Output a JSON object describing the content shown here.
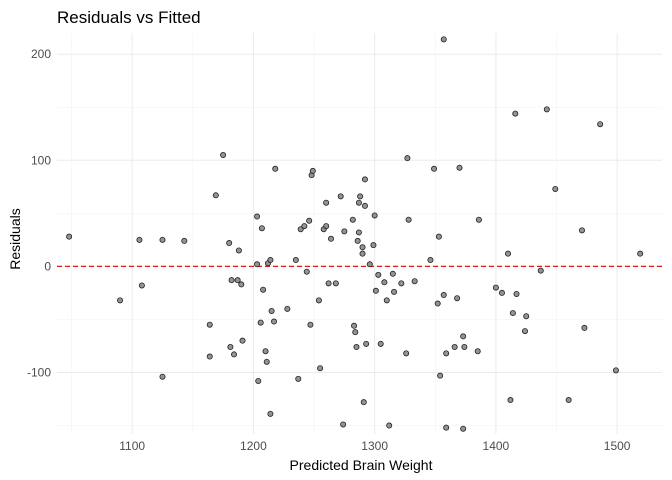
{
  "chart_data": {
    "type": "scatter",
    "title": "Residuals vs Fitted",
    "xlabel": "Predicted Brain Weight",
    "ylabel": "Residuals",
    "xlim": [
      1038,
      1537
    ],
    "ylim": [
      -158,
      220
    ],
    "x_ticks": [
      1100,
      1200,
      1300,
      1400,
      1500
    ],
    "y_ticks": [
      -100,
      0,
      100,
      200
    ],
    "grid": true,
    "reference_line": {
      "y": 0,
      "color": "#e41a1c",
      "style": "dashed"
    },
    "point_color": "#808080",
    "points": [
      [
        1048,
        28
      ],
      [
        1090,
        -32
      ],
      [
        1106,
        25
      ],
      [
        1108,
        -18
      ],
      [
        1125,
        25
      ],
      [
        1125,
        -104
      ],
      [
        1143,
        24
      ],
      [
        1164,
        -55
      ],
      [
        1164,
        -85
      ],
      [
        1169,
        67
      ],
      [
        1175,
        105
      ],
      [
        1180,
        22
      ],
      [
        1181,
        -76
      ],
      [
        1182,
        -13
      ],
      [
        1184,
        -83
      ],
      [
        1187,
        -13
      ],
      [
        1188,
        15
      ],
      [
        1190,
        -17
      ],
      [
        1191,
        -70
      ],
      [
        1203,
        2
      ],
      [
        1203,
        47
      ],
      [
        1204,
        -108
      ],
      [
        1206,
        -53
      ],
      [
        1207,
        36
      ],
      [
        1208,
        -22
      ],
      [
        1210,
        -80
      ],
      [
        1211,
        -90
      ],
      [
        1212,
        3
      ],
      [
        1214,
        6
      ],
      [
        1214,
        -139
      ],
      [
        1215,
        -42
      ],
      [
        1217,
        -52
      ],
      [
        1218,
        92
      ],
      [
        1228,
        -40
      ],
      [
        1235,
        6
      ],
      [
        1237,
        -106
      ],
      [
        1239,
        35
      ],
      [
        1242,
        38
      ],
      [
        1244,
        -5
      ],
      [
        1246,
        43
      ],
      [
        1247,
        -55
      ],
      [
        1248,
        86
      ],
      [
        1249,
        90
      ],
      [
        1254,
        -32
      ],
      [
        1255,
        -96
      ],
      [
        1258,
        35
      ],
      [
        1260,
        38
      ],
      [
        1260,
        60
      ],
      [
        1262,
        -16
      ],
      [
        1264,
        26
      ],
      [
        1268,
        -16
      ],
      [
        1272,
        66
      ],
      [
        1275,
        33
      ],
      [
        1274,
        -149
      ],
      [
        1282,
        44
      ],
      [
        1283,
        -56
      ],
      [
        1284,
        -62
      ],
      [
        1285,
        -76
      ],
      [
        1286,
        24
      ],
      [
        1287,
        32
      ],
      [
        1287,
        60
      ],
      [
        1288,
        66
      ],
      [
        1290,
        18
      ],
      [
        1290,
        12
      ],
      [
        1291,
        -128
      ],
      [
        1292,
        57
      ],
      [
        1292,
        82
      ],
      [
        1293,
        -73
      ],
      [
        1296,
        2
      ],
      [
        1299,
        20
      ],
      [
        1300,
        48
      ],
      [
        1301,
        -23
      ],
      [
        1303,
        -8
      ],
      [
        1305,
        -73
      ],
      [
        1308,
        -15
      ],
      [
        1310,
        -32
      ],
      [
        1312,
        -150
      ],
      [
        1315,
        -7
      ],
      [
        1316,
        -24
      ],
      [
        1322,
        -16
      ],
      [
        1326,
        -82
      ],
      [
        1327,
        102
      ],
      [
        1328,
        44
      ],
      [
        1333,
        -14
      ],
      [
        1346,
        6
      ],
      [
        1349,
        92
      ],
      [
        1352,
        -35
      ],
      [
        1353,
        28
      ],
      [
        1354,
        -103
      ],
      [
        1357,
        -27
      ],
      [
        1357,
        214
      ],
      [
        1359,
        -152
      ],
      [
        1359,
        -82
      ],
      [
        1366,
        -76
      ],
      [
        1368,
        -30
      ],
      [
        1370,
        93
      ],
      [
        1373,
        -66
      ],
      [
        1373,
        -153
      ],
      [
        1374,
        -76
      ],
      [
        1385,
        -80
      ],
      [
        1386,
        44
      ],
      [
        1400,
        -20
      ],
      [
        1405,
        -25
      ],
      [
        1410,
        12
      ],
      [
        1412,
        -126
      ],
      [
        1414,
        -44
      ],
      [
        1416,
        144
      ],
      [
        1417,
        -26
      ],
      [
        1424,
        -61
      ],
      [
        1425,
        -47
      ],
      [
        1437,
        -4
      ],
      [
        1442,
        148
      ],
      [
        1449,
        73
      ],
      [
        1460,
        -126
      ],
      [
        1471,
        34
      ],
      [
        1473,
        -58
      ],
      [
        1486,
        134
      ],
      [
        1499,
        -98
      ],
      [
        1519,
        12
      ]
    ]
  }
}
